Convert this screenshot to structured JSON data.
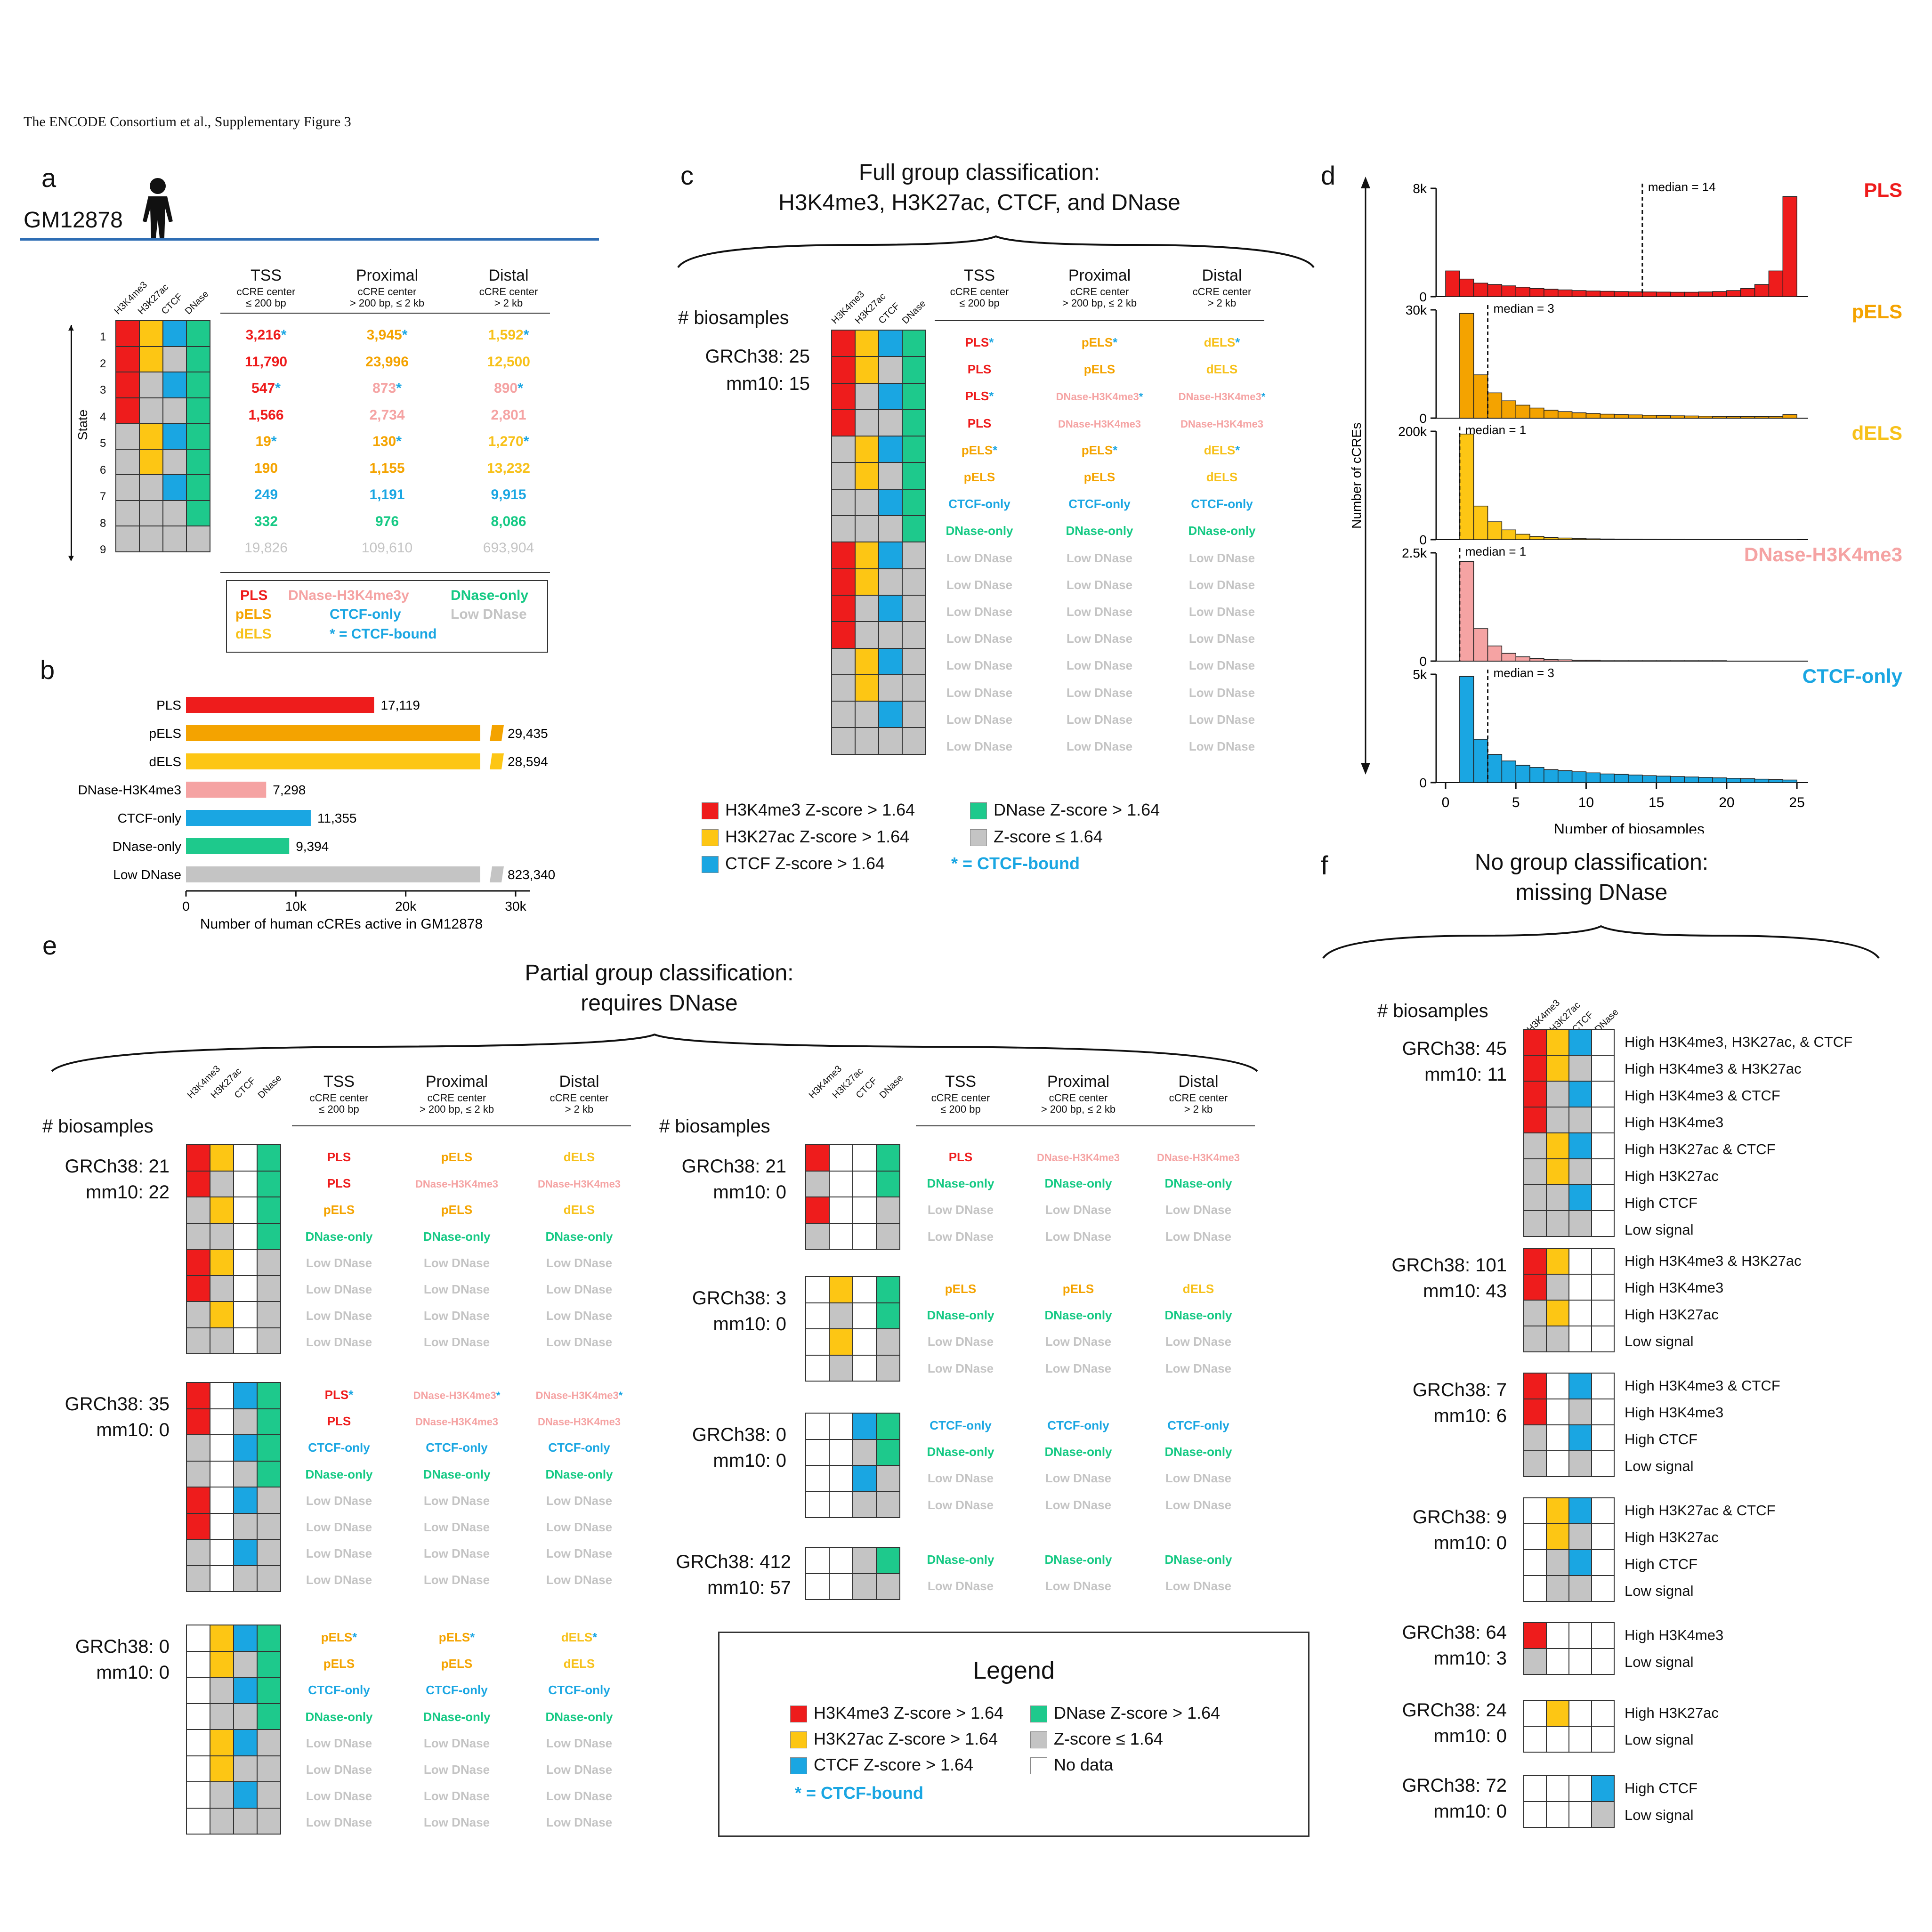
{
  "header": "The ENCODE  Consortium et al., Supplementary Figure 3",
  "panel_letters": [
    "a",
    "b",
    "c",
    "d",
    "e",
    "f"
  ],
  "a": {
    "cell_line": "GM12878",
    "state_label": "State",
    "states": [
      "1",
      "2",
      "3",
      "4",
      "5",
      "6",
      "7",
      "8",
      "9"
    ],
    "marks": [
      "H3K4me3",
      "H3K27ac",
      "CTCF",
      "DNase"
    ],
    "cols": [
      {
        "title": "TSS",
        "sub1": "cCRE center",
        "sub2": "≤ 200 bp"
      },
      {
        "title": "Proximal",
        "sub1": "cCRE center",
        "sub2": "> 200 bp, ≤ 2 kb"
      },
      {
        "title": "Distal",
        "sub1": "cCRE center",
        "sub2": "> 2 kb"
      }
    ],
    "rows": [
      [
        "3,216*",
        "3,945*",
        "1,592*"
      ],
      [
        "11,790",
        "23,996",
        "12,500"
      ],
      [
        "547*",
        "873*",
        "890*"
      ],
      [
        "1,566",
        "2,734",
        "2,801"
      ],
      [
        "19*",
        "130*",
        "1,270*"
      ],
      [
        "190",
        "1,155",
        "13,232"
      ],
      [
        "249",
        "1,191",
        "9,915"
      ],
      [
        "332",
        "976",
        "8,086"
      ],
      [
        "19,826",
        "109,610",
        "693,904"
      ]
    ],
    "legend": [
      "PLS",
      "DNase-H3K4me3y",
      "DNase-only",
      "pELS",
      "CTCF-only",
      "Low DNase",
      "dELS",
      "* = CTCF-bound"
    ]
  },
  "b": {
    "chart_data": {
      "type": "bar",
      "orientation": "horizontal",
      "categories": [
        "PLS",
        "pELS",
        "dELS",
        "DNase-H3K4me3",
        "CTCF-only",
        "DNase-only",
        "Low DNase"
      ],
      "values": [
        17119,
        29435,
        28594,
        7298,
        11355,
        9394,
        823340
      ],
      "labels": [
        "17,119",
        "29,435",
        "28,594",
        "7,298",
        "11,355",
        "9,394",
        "823,340"
      ],
      "colors": [
        "#ee1c1c",
        "#f4a300",
        "#fdc614",
        "#f5a3a3",
        "#1aa6e2",
        "#1ec98c",
        "#c4c4c4"
      ],
      "xticks": [
        "0",
        "10k",
        "20k",
        "30k"
      ],
      "xlabel": "Number of human cCREs active in GM12878",
      "axis_break": true
    }
  },
  "c": {
    "title1": "Full group classification:",
    "title2": "H3K4me3, H3K27ac, CTCF, and DNase",
    "biosamples": "# biosamples",
    "grch": "GRCh38: 25",
    "mm": "mm10: 15",
    "legend": [
      "H3K4me3 Z-score > 1.64",
      "DNase Z-score > 1.64",
      "H3K27ac Z-score > 1.64",
      "Z-score ≤ 1.64",
      "CTCF Z-score > 1.64",
      "* = CTCF-bound"
    ]
  },
  "d": {
    "chart_data": [
      {
        "type": "bar",
        "title": "PLS",
        "ymax_label": "8k",
        "median_label": "median = 14",
        "median": 14,
        "values": [
          1.9,
          1.3,
          1.0,
          0.9,
          0.8,
          0.7,
          0.6,
          0.55,
          0.5,
          0.45,
          0.42,
          0.4,
          0.38,
          0.36,
          0.35,
          0.34,
          0.33,
          0.33,
          0.35,
          0.38,
          0.45,
          0.6,
          0.9,
          1.9,
          7.4
        ],
        "ymax": 8
      },
      {
        "type": "bar",
        "title": "pELS",
        "ymax_label": "30k",
        "median_label": "median = 3",
        "median": 3,
        "values": [
          0,
          29,
          12,
          7,
          4.8,
          3.6,
          2.8,
          2.2,
          1.8,
          1.5,
          1.3,
          1.1,
          1.0,
          0.9,
          0.8,
          0.7,
          0.65,
          0.6,
          0.55,
          0.5,
          0.45,
          0.45,
          0.45,
          0.5,
          1.0
        ],
        "ymax": 30
      },
      {
        "type": "bar",
        "title": "dELS",
        "ymax_label": "200k",
        "median_label": "median = 1",
        "median": 1,
        "values": [
          0,
          195,
          62,
          33,
          18,
          10,
          6,
          4,
          3,
          2,
          1.5,
          1.2,
          1,
          0.8,
          0.6,
          0.5,
          0.4,
          0.3,
          0.25,
          0.2,
          0.15,
          0.1,
          0.1,
          0.1,
          0.1
        ],
        "ymax": 200
      },
      {
        "type": "bar",
        "title": "DNase-H3K4me3",
        "ymax_label": "2.5k",
        "median_label": "median = 1",
        "median": 1,
        "values": [
          0,
          2.3,
          0.75,
          0.35,
          0.18,
          0.1,
          0.06,
          0.04,
          0.03,
          0.02,
          0.02,
          0.01,
          0.01,
          0.01,
          0.01,
          0.01,
          0.01,
          0.01,
          0.01,
          0.01
        ],
        "ymax": 2.5
      },
      {
        "type": "bar",
        "title": "CTCF-only",
        "ymax_label": "5k",
        "median_label": "median = 3",
        "median": 3,
        "values": [
          0,
          4.9,
          2.0,
          1.3,
          1.0,
          0.8,
          0.7,
          0.6,
          0.55,
          0.5,
          0.45,
          0.4,
          0.38,
          0.35,
          0.32,
          0.3,
          0.28,
          0.26,
          0.24,
          0.22,
          0.2,
          0.18,
          0.16,
          0.14,
          0.12
        ],
        "ymax": 5
      }
    ],
    "ylabel": "Number of cCREs",
    "xlabel": "Number of biosamples",
    "xticks": [
      "0",
      "5",
      "10",
      "15",
      "20",
      "25"
    ]
  },
  "e": {
    "title1": "Partial group classification:",
    "title2": "requires DNase",
    "biosamples": "# biosamples",
    "groups": [
      {
        "grch": "GRCh38: 21",
        "mm": "mm10: 22"
      },
      {
        "grch": "GRCh38: 35",
        "mm": "mm10:  0"
      },
      {
        "grch": "GRCh38:  0",
        "mm": "mm10:  0"
      },
      {
        "grch": "GRCh38: 21",
        "mm": "mm10:  0"
      },
      {
        "grch": "GRCh38:  3",
        "mm": "mm10:  0"
      },
      {
        "grch": "GRCh38:  0",
        "mm": "mm10:  0"
      },
      {
        "grch": "GRCh38: 412",
        "mm": "mm10:  57"
      }
    ],
    "legend_title": "Legend",
    "legend": [
      "H3K4me3 Z-score > 1.64",
      "DNase Z-score > 1.64",
      "H3K27ac Z-score > 1.64",
      "Z-score ≤ 1.64",
      "CTCF Z-score > 1.64",
      "No data",
      "* = CTCF-bound"
    ]
  },
  "f": {
    "title1": "No group classification:",
    "title2": "missing DNase",
    "biosamples": "# biosamples",
    "groups": [
      {
        "grch": "GRCh38:  45",
        "mm": "mm10:  11",
        "labels": [
          "High H3K4me3, H3K27ac, & CTCF",
          "High H3K4me3 & H3K27ac",
          "High H3K4me3 & CTCF",
          "High H3K4me3",
          "High H3K27ac & CTCF",
          "High H3K27ac",
          "High CTCF",
          "Low signal"
        ]
      },
      {
        "grch": "GRCh38:  101",
        "mm": "mm10:  43",
        "labels": [
          "High H3K4me3 & H3K27ac",
          "High H3K4me3",
          "High H3K27ac",
          "Low signal"
        ]
      },
      {
        "grch": "GRCh38:   7",
        "mm": "mm10:   6",
        "labels": [
          "High H3K4me3 & CTCF",
          "High H3K4me3",
          "High CTCF",
          "Low signal"
        ]
      },
      {
        "grch": "GRCh38:   9",
        "mm": "mm10:   0",
        "labels": [
          "High H3K27ac & CTCF",
          "High H3K27ac",
          "High CTCF",
          "Low signal"
        ]
      },
      {
        "grch": "GRCh38:  64",
        "mm": "mm10:   3",
        "labels": [
          "High H3K4me3",
          "Low signal"
        ]
      },
      {
        "grch": "GRCh38: 24",
        "mm": "mm10:   0",
        "labels": [
          "High H3K27ac",
          "Low signal"
        ]
      },
      {
        "grch": "GRCh38:  72",
        "mm": "mm10:   0",
        "labels": [
          "High CTCF",
          "Low signal"
        ]
      }
    ]
  },
  "common": {
    "tss": "TSS",
    "proximal": "Proximal",
    "distal": "Distal",
    "sub1": "cCRE center",
    "tss2": "≤ 200 bp",
    "prox2": "> 200 bp, ≤ 2 kb",
    "dist2": "> 2 kb",
    "PLS": "PLS",
    "pELS": "pELS",
    "dELS": "dELS",
    "DH": "DNase-H3K4me3",
    "CTCF": "CTCF-only",
    "DNase": "DNase-only",
    "Low": "Low DNase",
    "star": "*",
    "m1": "H3K4me3",
    "m2": "H3K27ac",
    "m3": "CTCF",
    "m4": "DNase"
  }
}
